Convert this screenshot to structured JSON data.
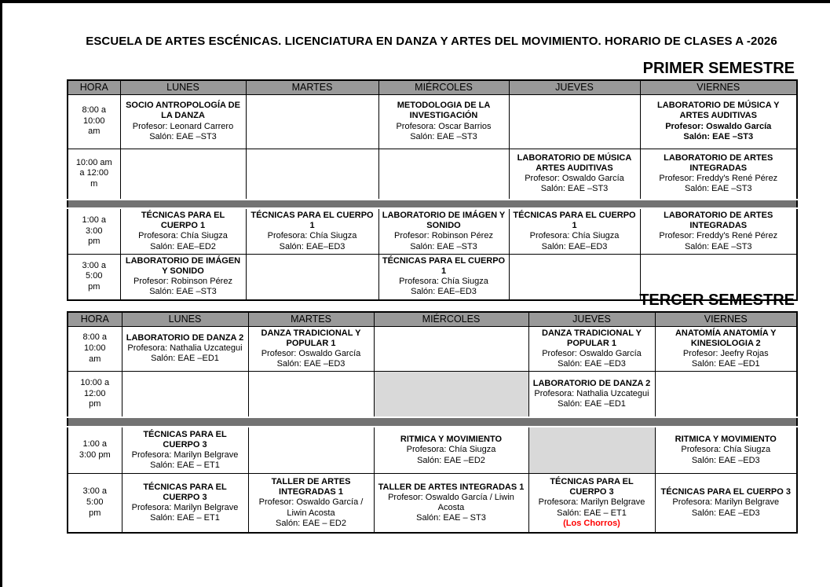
{
  "document": {
    "title": "ESCUELA DE ARTES ESCÉNICAS. LICENCIATURA EN DANZA Y ARTES DEL MOVIMIENTO. HORARIO DE CLASES  A -2026"
  },
  "colors": {
    "header_bg": "#999999",
    "separator_bg": "#737373",
    "shaded_cell_bg": "#d9d9d9",
    "note_red": "#ff0000"
  },
  "sections": [
    {
      "title": "PRIMER SEMESTRE",
      "columns": [
        "HORA",
        "LUNES",
        "MARTES",
        "MIÉRCOLES",
        "JUEVES",
        "VIERNES"
      ],
      "rows": [
        {
          "time": "8:00 a\n10:00\nam",
          "cells": [
            {
              "course": "SOCIO ANTROPOLOGÍA DE LA DANZA",
              "details": [
                "Profesor: Leonard Carrero",
                "Salón: EAE –ST3"
              ]
            },
            {},
            {
              "course": "METODOLOGIA DE LA INVESTIGACIÓN",
              "details": [
                "Profesora: Oscar Barrios",
                "Salón: EAE –ST3"
              ]
            },
            {},
            {
              "course": "LABORATORIO DE MÚSICA Y ARTES AUDITIVAS",
              "details": [
                "Profesor:  Oswaldo García",
                "Salón: EAE –ST3"
              ],
              "all_bold": true
            }
          ]
        },
        {
          "time": "10:00 am\na 12:00\nm",
          "cells": [
            {},
            {},
            {},
            {
              "course": "LABORATORIO DE MÚSICA ARTES AUDITIVAS",
              "details": [
                "Profesor:  Oswaldo García",
                "Salón: EAE –ST3"
              ]
            },
            {
              "course": "LABORATORIO DE ARTES INTEGRADAS",
              "details": [
                "Profesor: Freddy's René Pérez",
                "Salón: EAE –ST3"
              ]
            }
          ]
        },
        {
          "separator": true
        },
        {
          "time": "1:00 a\n3:00\npm",
          "cells": [
            {
              "course": "TÉCNICAS PARA EL CUERPO 1",
              "details": [
                "Profesora: Chía Siugza",
                "Salón: EAE–ED2"
              ]
            },
            {
              "course": "TÉCNICAS PARA EL CUERPO 1",
              "details": [
                "Profesora: Chía Siugza",
                "Salón: EAE–ED3"
              ]
            },
            {
              "course": "LABORATORIO DE IMÁGEN Y SONIDO",
              "details": [
                "Profesor: Robinson Pérez",
                "Salón: EAE –ST3"
              ]
            },
            {
              "course": "TÉCNICAS PARA EL CUERPO 1",
              "details": [
                "Profesora: Chía Siugza",
                "Salón: EAE–ED3"
              ]
            },
            {
              "course": "LABORATORIO DE ARTES INTEGRADAS",
              "details": [
                "Profesor: Freddy's René Pérez",
                "Salón: EAE –ST3"
              ]
            }
          ]
        },
        {
          "time": "3:00 a\n5:00\npm",
          "cells": [
            {
              "course": "LABORATORIO DE IMÁGEN Y SONIDO",
              "details": [
                "Profesor: Robinson Pérez",
                "Salón: EAE –ST3"
              ]
            },
            {},
            {
              "course": "TÉCNICAS PARA EL CUERPO 1",
              "details": [
                "Profesora: Chía Siugza",
                "Salón: EAE–ED3"
              ]
            },
            {},
            {}
          ]
        }
      ]
    },
    {
      "title": "TERCER SEMESTRE",
      "columns": [
        "HORA",
        "LUNES",
        "MARTES",
        "MIÉRCOLES",
        "JUEVES",
        "VIERNES"
      ],
      "rows": [
        {
          "time": "8:00 a\n10:00\nam",
          "cells": [
            {
              "course": "LABORATORIO DE DANZA 2",
              "details": [
                "Profesora: Nathalia Uzcategui",
                "Salón: EAE –ED1"
              ]
            },
            {
              "course": "DANZA TRADICIONAL Y POPULAR 1",
              "details": [
                "Profesor: Oswaldo García",
                "Salón: EAE –ED3"
              ]
            },
            {},
            {
              "course": "DANZA TRADICIONAL Y POPULAR 1",
              "details": [
                "Profesor: Oswaldo García",
                "Salón: EAE –ED3"
              ]
            },
            {
              "course": "ANATOMÍA ANATOMÍA Y KINESIOLOGIA 2",
              "details": [
                "Profesor: Jeefry Rojas",
                "Salón: EAE –ED1"
              ]
            }
          ]
        },
        {
          "time": "10:00 a\n12:00\npm",
          "cells": [
            {},
            {},
            {
              "shaded": true
            },
            {
              "course": "LABORATORIO DE DANZA 2",
              "details": [
                "Profesora: Nathalia Uzcategui",
                "Salón: EAE –ED1"
              ]
            },
            {}
          ]
        },
        {
          "separator": true
        },
        {
          "time": "1:00 a\n3:00 pm",
          "cells": [
            {
              "course": "TÉCNICAS PARA EL CUERPO 3",
              "details": [
                "Profesora: Marilyn Belgrave",
                "Salón: EAE – ET1"
              ]
            },
            {},
            {
              "course": "RITMICA Y MOVIMIENTO",
              "details": [
                "Profesora: Chía Siugza",
                "Salón: EAE –ED2"
              ]
            },
            {
              "shaded": true
            },
            {
              "course": "RITMICA Y MOVIMIENTO",
              "details": [
                "Profesora: Chía Siugza",
                "Salón: EAE –ED3"
              ]
            }
          ]
        },
        {
          "time": "3:00 a\n5:00\npm",
          "cells": [
            {
              "course": "TÉCNICAS PARA EL CUERPO 3",
              "details": [
                "Profesora: Marilyn Belgrave",
                "Salón: EAE – ET1"
              ]
            },
            {
              "course": "TALLER DE ARTES INTEGRADAS 1",
              "details": [
                "Profesor:  Oswaldo García / Liwin Acosta",
                "Salón: EAE – ED2"
              ]
            },
            {
              "course": "TALLER DE ARTES INTEGRADAS 1",
              "details": [
                "Profesor: Oswaldo García / Liwin Acosta",
                "Salón: EAE – ST3"
              ]
            },
            {
              "course": "TÉCNICAS PARA EL CUERPO 3",
              "details": [
                "Profesora: Marilyn Belgrave",
                "Salón: EAE – ET1"
              ],
              "note": "(Los Chorros)"
            },
            {
              "course": "TÉCNICAS PARA EL CUERPO 3",
              "details": [
                "Profesora: Marilyn Belgrave",
                "Salón: EAE –ED3"
              ]
            }
          ]
        }
      ]
    }
  ]
}
